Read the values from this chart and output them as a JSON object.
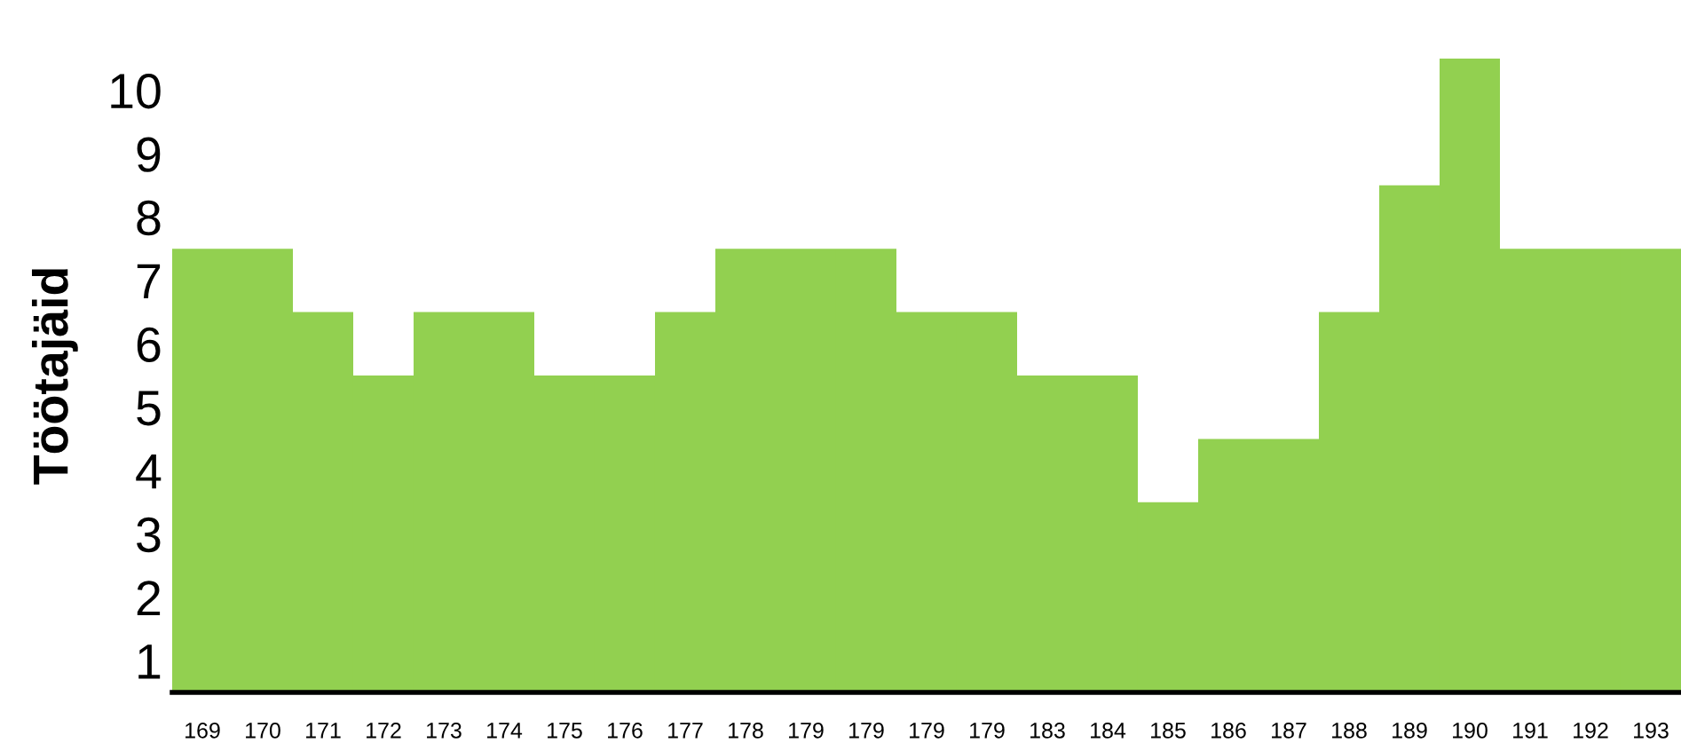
{
  "chart_data": {
    "type": "bar",
    "ylabel": "Töötajäid",
    "categories": [
      "169",
      "170",
      "171",
      "172",
      "173",
      "174",
      "175",
      "176",
      "177",
      "178",
      "179",
      "179",
      "179",
      "179",
      "183",
      "184",
      "185",
      "186",
      "187",
      "188",
      "189",
      "190",
      "191",
      "192",
      "193"
    ],
    "values": [
      7,
      7,
      6,
      5,
      6,
      6,
      5,
      5,
      6,
      7,
      7,
      7,
      6,
      6,
      5,
      5,
      3,
      4,
      4,
      6,
      8,
      10,
      7,
      7,
      7
    ],
    "color": "#92d050",
    "ylim": [
      0,
      10
    ],
    "yticks": [
      {
        "value": 0.5,
        "label": "1"
      },
      {
        "value": 1.5,
        "label": "2"
      },
      {
        "value": 2.5,
        "label": "3"
      },
      {
        "value": 3.5,
        "label": "4"
      },
      {
        "value": 4.5,
        "label": "5"
      },
      {
        "value": 5.5,
        "label": "6"
      },
      {
        "value": 6.5,
        "label": "7"
      },
      {
        "value": 7.5,
        "label": "8"
      },
      {
        "value": 8.5,
        "label": "9"
      },
      {
        "value": 9.5,
        "label": "10"
      }
    ],
    "grid": false
  }
}
